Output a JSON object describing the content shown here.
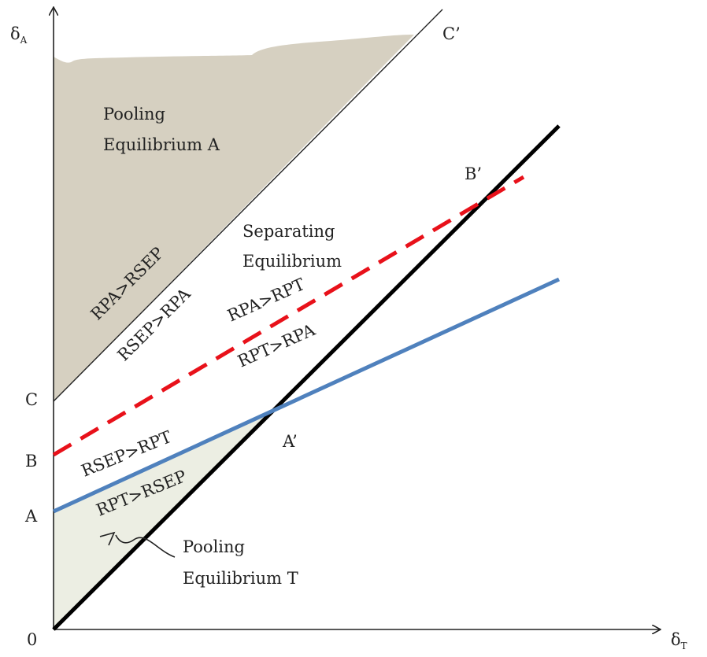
{
  "axes": {
    "y_symbol": "δ",
    "y_subscript": "A",
    "x_symbol": "δ",
    "x_subscript": "T",
    "origin_label": "0",
    "y_points": {
      "c": "C",
      "b": "B",
      "a": "A"
    }
  },
  "points": {
    "c_prime": "C’",
    "b_prime": "B’",
    "a_prime": "A’"
  },
  "regions": {
    "pooling_a": [
      "Pooling",
      "Equilibrium A"
    ],
    "separating": [
      "Separating",
      "Equilibrium"
    ],
    "pooling_t": [
      "Pooling",
      "Equilibrium T"
    ]
  },
  "line_labels": {
    "rpa_gt_rsep": "RPA>RSEP",
    "rsep_gt_rpa": "RSEP>RPA",
    "rpa_gt_rpt": "RPA>RPT",
    "rpt_gt_rpa": "RPT>RPA",
    "rsep_gt_rpt": "RSEP>RPT",
    "rpt_gt_rsep": "RPT>RSEP"
  },
  "colors": {
    "pooling_a_fill": "#d6d0c1",
    "pooling_t_fill": "#eceee3",
    "red_dashed_line": "#e8111a",
    "blue_line": "#4f81bd",
    "black_line": "#000000",
    "thin_line": "#222222"
  }
}
